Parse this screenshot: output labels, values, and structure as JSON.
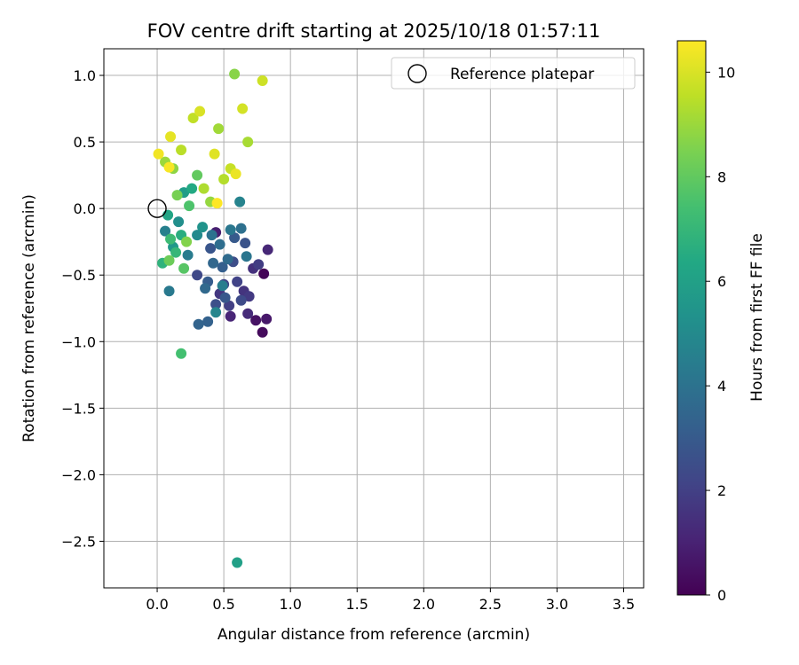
{
  "chart_data": {
    "type": "scatter",
    "title": "FOV centre drift starting at 2025/10/18 01:57:11",
    "xlabel": "Angular distance from reference (arcmin)",
    "ylabel": "Rotation from reference (arcmin)",
    "xlim": [
      -0.4,
      3.65
    ],
    "ylim": [
      -2.85,
      1.2
    ],
    "xticks": [
      0.0,
      0.5,
      1.0,
      1.5,
      2.0,
      2.5,
      3.0,
      3.5
    ],
    "xtick_labels": [
      "0.0",
      "0.5",
      "1.0",
      "1.5",
      "2.0",
      "2.5",
      "3.0",
      "3.5"
    ],
    "yticks": [
      1.0,
      0.5,
      0.0,
      -0.5,
      -1.0,
      -1.5,
      -2.0,
      -2.5
    ],
    "ytick_labels": [
      "1.0",
      "0.5",
      "0.0",
      "−0.5",
      "−1.0",
      "−1.5",
      "−2.0",
      "−2.5"
    ],
    "grid": true,
    "legend": {
      "label": "Reference platepar",
      "position": "top-right"
    },
    "reference_point": {
      "x": 0.0,
      "y": 0.0
    },
    "colorbar": {
      "label": "Hours from first FF file",
      "colormap": "viridis",
      "range": [
        0,
        10.6
      ],
      "ticks": [
        0,
        2,
        4,
        6,
        8,
        10
      ],
      "tick_labels": [
        "0",
        "2",
        "4",
        "6",
        "8",
        "10"
      ]
    },
    "points": [
      {
        "x": 0.8,
        "y": -0.49,
        "t": 0.1
      },
      {
        "x": 0.79,
        "y": -0.93,
        "t": 0.3
      },
      {
        "x": 0.74,
        "y": -0.84,
        "t": 0.5
      },
      {
        "x": 0.82,
        "y": -0.83,
        "t": 0.7
      },
      {
        "x": 0.44,
        "y": -0.18,
        "t": 0.9
      },
      {
        "x": 0.55,
        "y": -0.81,
        "t": 1.1
      },
      {
        "x": 0.83,
        "y": -0.31,
        "t": 1.2
      },
      {
        "x": 0.68,
        "y": -0.79,
        "t": 1.3
      },
      {
        "x": 0.72,
        "y": -0.45,
        "t": 1.5
      },
      {
        "x": 0.65,
        "y": -0.62,
        "t": 1.6
      },
      {
        "x": 0.47,
        "y": -0.64,
        "t": 1.7
      },
      {
        "x": 0.69,
        "y": -0.66,
        "t": 1.8
      },
      {
        "x": 0.76,
        "y": -0.42,
        "t": 1.9
      },
      {
        "x": 0.54,
        "y": -0.73,
        "t": 2.0
      },
      {
        "x": 0.6,
        "y": -0.55,
        "t": 2.1
      },
      {
        "x": 0.5,
        "y": -0.57,
        "t": 2.2
      },
      {
        "x": 0.3,
        "y": -0.5,
        "t": 2.3
      },
      {
        "x": 0.63,
        "y": -0.69,
        "t": 2.4
      },
      {
        "x": 0.57,
        "y": -0.4,
        "t": 2.5
      },
      {
        "x": 0.44,
        "y": -0.72,
        "t": 2.6
      },
      {
        "x": 0.66,
        "y": -0.26,
        "t": 2.7
      },
      {
        "x": 0.4,
        "y": -0.3,
        "t": 2.8
      },
      {
        "x": 0.51,
        "y": -0.67,
        "t": 2.9
      },
      {
        "x": 0.58,
        "y": -0.22,
        "t": 3.0
      },
      {
        "x": 0.38,
        "y": -0.55,
        "t": 3.1
      },
      {
        "x": 0.49,
        "y": -0.44,
        "t": 3.2
      },
      {
        "x": 0.38,
        "y": -0.85,
        "t": 3.3
      },
      {
        "x": 0.31,
        "y": -0.87,
        "t": 3.4
      },
      {
        "x": 0.42,
        "y": -0.41,
        "t": 3.5
      },
      {
        "x": 0.36,
        "y": -0.6,
        "t": 3.6
      },
      {
        "x": 0.53,
        "y": -0.38,
        "t": 3.7
      },
      {
        "x": 0.47,
        "y": -0.27,
        "t": 3.8
      },
      {
        "x": 0.63,
        "y": -0.15,
        "t": 3.9
      },
      {
        "x": 0.41,
        "y": -0.2,
        "t": 4.0
      },
      {
        "x": 0.67,
        "y": -0.36,
        "t": 4.1
      },
      {
        "x": 0.55,
        "y": -0.16,
        "t": 4.2
      },
      {
        "x": 0.09,
        "y": -0.62,
        "t": 4.3
      },
      {
        "x": 0.23,
        "y": -0.35,
        "t": 4.4
      },
      {
        "x": 0.49,
        "y": -0.58,
        "t": 4.5
      },
      {
        "x": 0.06,
        "y": -0.17,
        "t": 4.6
      },
      {
        "x": 0.62,
        "y": 0.05,
        "t": 4.7
      },
      {
        "x": 0.44,
        "y": -0.78,
        "t": 4.8
      },
      {
        "x": 0.3,
        "y": -0.2,
        "t": 5.0
      },
      {
        "x": 0.16,
        "y": -0.1,
        "t": 5.2
      },
      {
        "x": 0.34,
        "y": -0.14,
        "t": 5.4
      },
      {
        "x": 0.12,
        "y": -0.29,
        "t": 5.6
      },
      {
        "x": 0.2,
        "y": 0.12,
        "t": 5.8
      },
      {
        "x": 0.6,
        "y": -2.66,
        "t": 6.0
      },
      {
        "x": 0.08,
        "y": -0.05,
        "t": 6.2
      },
      {
        "x": 0.26,
        "y": 0.15,
        "t": 6.4
      },
      {
        "x": 0.18,
        "y": -0.2,
        "t": 6.6
      },
      {
        "x": 0.04,
        "y": -0.41,
        "t": 6.8
      },
      {
        "x": 0.14,
        "y": -0.33,
        "t": 7.0
      },
      {
        "x": 0.1,
        "y": -0.23,
        "t": 7.2
      },
      {
        "x": 0.18,
        "y": -1.09,
        "t": 7.4
      },
      {
        "x": 0.24,
        "y": 0.02,
        "t": 7.6
      },
      {
        "x": 0.2,
        "y": -0.45,
        "t": 7.8
      },
      {
        "x": 0.3,
        "y": 0.25,
        "t": 8.0
      },
      {
        "x": 0.09,
        "y": -0.39,
        "t": 8.2
      },
      {
        "x": 0.15,
        "y": 0.1,
        "t": 8.4
      },
      {
        "x": 0.22,
        "y": -0.25,
        "t": 8.6
      },
      {
        "x": 0.58,
        "y": 1.01,
        "t": 8.7
      },
      {
        "x": 0.12,
        "y": 0.3,
        "t": 8.8
      },
      {
        "x": 0.4,
        "y": 0.05,
        "t": 8.9
      },
      {
        "x": 0.06,
        "y": 0.35,
        "t": 9.0
      },
      {
        "x": 0.46,
        "y": 0.6,
        "t": 9.1
      },
      {
        "x": 0.68,
        "y": 0.5,
        "t": 9.2
      },
      {
        "x": 0.35,
        "y": 0.15,
        "t": 9.3
      },
      {
        "x": 0.5,
        "y": 0.22,
        "t": 9.4
      },
      {
        "x": 0.18,
        "y": 0.44,
        "t": 9.5
      },
      {
        "x": 0.27,
        "y": 0.68,
        "t": 9.6
      },
      {
        "x": 0.55,
        "y": 0.3,
        "t": 9.7
      },
      {
        "x": 0.79,
        "y": 0.96,
        "t": 9.8
      },
      {
        "x": 0.64,
        "y": 0.75,
        "t": 9.9
      },
      {
        "x": 0.32,
        "y": 0.73,
        "t": 10.0
      },
      {
        "x": 0.43,
        "y": 0.41,
        "t": 10.1
      },
      {
        "x": 0.1,
        "y": 0.54,
        "t": 10.2
      },
      {
        "x": 0.59,
        "y": 0.26,
        "t": 10.3
      },
      {
        "x": 0.01,
        "y": 0.41,
        "t": 10.4
      },
      {
        "x": 0.09,
        "y": 0.31,
        "t": 10.5
      },
      {
        "x": 0.45,
        "y": 0.04,
        "t": 10.6
      }
    ]
  }
}
